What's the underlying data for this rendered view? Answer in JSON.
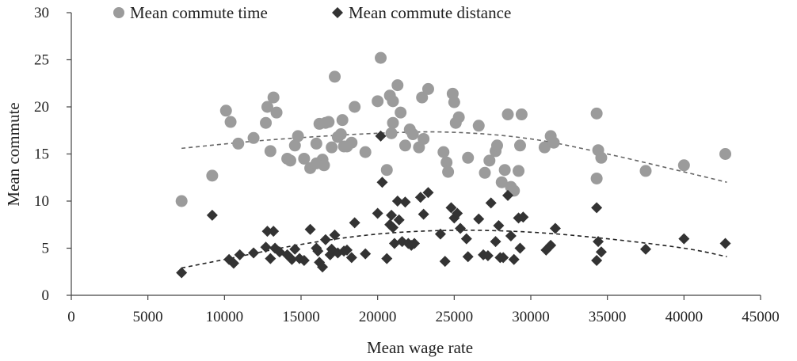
{
  "chart_data": {
    "type": "scatter",
    "title": "",
    "xlabel": "Mean wage rate",
    "ylabel": "Mean commute",
    "xlim": [
      0,
      45000
    ],
    "ylim": [
      0,
      30
    ],
    "x_ticks": [
      "0",
      "5000",
      "10000",
      "15000",
      "20000",
      "25000",
      "30000",
      "35000",
      "40000",
      "45000"
    ],
    "y_ticks": [
      "0",
      "5",
      "10",
      "15",
      "20",
      "25",
      "30"
    ],
    "legend_position": "top",
    "series": [
      {
        "name": "Mean commute time",
        "marker": "circle",
        "color": "#9b9b9b",
        "trendline": {
          "type": "polynomial",
          "color": "#666666",
          "points": [
            [
              7200,
              15.6
            ],
            [
              13000,
              16.5
            ],
            [
              20000,
              17.2
            ],
            [
              25000,
              17.3
            ],
            [
              30000,
              16.6
            ],
            [
              35000,
              15.0
            ],
            [
              40000,
              13.1
            ],
            [
              42800,
              12.0
            ]
          ]
        },
        "points": [
          [
            7200,
            10.0
          ],
          [
            9200,
            12.7
          ],
          [
            10100,
            19.6
          ],
          [
            10400,
            18.4
          ],
          [
            10900,
            16.1
          ],
          [
            11900,
            16.7
          ],
          [
            12800,
            20.0
          ],
          [
            12700,
            18.3
          ],
          [
            13000,
            15.3
          ],
          [
            13200,
            21.0
          ],
          [
            13400,
            19.4
          ],
          [
            14100,
            14.5
          ],
          [
            14600,
            15.9
          ],
          [
            14800,
            16.9
          ],
          [
            14300,
            14.3
          ],
          [
            15200,
            14.5
          ],
          [
            15600,
            13.5
          ],
          [
            16000,
            14.0
          ],
          [
            16000,
            16.1
          ],
          [
            16200,
            18.2
          ],
          [
            16400,
            14.4
          ],
          [
            16500,
            13.8
          ],
          [
            16600,
            18.3
          ],
          [
            16800,
            18.4
          ],
          [
            17000,
            15.7
          ],
          [
            17200,
            23.2
          ],
          [
            17400,
            16.8
          ],
          [
            17600,
            17.1
          ],
          [
            17800,
            15.8
          ],
          [
            17700,
            18.6
          ],
          [
            18300,
            16.2
          ],
          [
            18500,
            20.0
          ],
          [
            18000,
            15.8
          ],
          [
            19200,
            15.2
          ],
          [
            20000,
            20.6
          ],
          [
            20200,
            25.2
          ],
          [
            20600,
            13.3
          ],
          [
            20800,
            21.2
          ],
          [
            20900,
            17.2
          ],
          [
            21000,
            20.6
          ],
          [
            21000,
            18.3
          ],
          [
            21300,
            22.3
          ],
          [
            21500,
            19.4
          ],
          [
            21800,
            15.9
          ],
          [
            22100,
            17.6
          ],
          [
            22300,
            17.1
          ],
          [
            22700,
            15.7
          ],
          [
            22900,
            21.0
          ],
          [
            23000,
            16.6
          ],
          [
            23300,
            21.9
          ],
          [
            24300,
            15.2
          ],
          [
            24500,
            14.1
          ],
          [
            24600,
            13.1
          ],
          [
            24900,
            21.4
          ],
          [
            25000,
            20.5
          ],
          [
            25100,
            18.3
          ],
          [
            25300,
            18.9
          ],
          [
            25900,
            14.6
          ],
          [
            26600,
            18.0
          ],
          [
            27000,
            13.0
          ],
          [
            27300,
            14.3
          ],
          [
            27700,
            15.3
          ],
          [
            27800,
            15.9
          ],
          [
            28100,
            12.0
          ],
          [
            28300,
            13.3
          ],
          [
            28500,
            19.2
          ],
          [
            28700,
            11.5
          ],
          [
            28900,
            11.1
          ],
          [
            29200,
            13.2
          ],
          [
            29300,
            15.9
          ],
          [
            29400,
            19.2
          ],
          [
            30900,
            15.7
          ],
          [
            31300,
            16.9
          ],
          [
            31500,
            16.2
          ],
          [
            34300,
            19.3
          ],
          [
            34300,
            12.4
          ],
          [
            34400,
            15.4
          ],
          [
            34600,
            14.6
          ],
          [
            37500,
            13.2
          ],
          [
            40000,
            13.8
          ],
          [
            42700,
            15.0
          ]
        ]
      },
      {
        "name": "Mean commute distance",
        "marker": "diamond",
        "color": "#333333",
        "trendline": {
          "type": "polynomial",
          "color": "#222222",
          "points": [
            [
              7200,
              2.9
            ],
            [
              10000,
              3.8
            ],
            [
              15000,
              5.4
            ],
            [
              20000,
              6.5
            ],
            [
              25000,
              6.9
            ],
            [
              30000,
              6.7
            ],
            [
              35000,
              6.0
            ],
            [
              40000,
              5.0
            ],
            [
              42800,
              4.1
            ]
          ]
        },
        "points": [
          [
            7200,
            2.4
          ],
          [
            9200,
            8.5
          ],
          [
            10300,
            3.8
          ],
          [
            10600,
            3.4
          ],
          [
            11000,
            4.3
          ],
          [
            11900,
            4.5
          ],
          [
            12700,
            5.1
          ],
          [
            12800,
            6.8
          ],
          [
            13000,
            3.9
          ],
          [
            13200,
            6.8
          ],
          [
            13300,
            5.0
          ],
          [
            13600,
            4.6
          ],
          [
            14100,
            4.3
          ],
          [
            14400,
            3.8
          ],
          [
            14600,
            4.9
          ],
          [
            14900,
            3.9
          ],
          [
            15200,
            3.7
          ],
          [
            15600,
            7.0
          ],
          [
            16000,
            5.0
          ],
          [
            16100,
            4.7
          ],
          [
            16200,
            3.5
          ],
          [
            16400,
            3.0
          ],
          [
            16600,
            5.9
          ],
          [
            16900,
            4.3
          ],
          [
            17000,
            4.9
          ],
          [
            17200,
            6.4
          ],
          [
            17400,
            4.5
          ],
          [
            17800,
            4.7
          ],
          [
            18000,
            4.8
          ],
          [
            18300,
            4.0
          ],
          [
            18500,
            7.7
          ],
          [
            19200,
            4.4
          ],
          [
            20000,
            8.7
          ],
          [
            20200,
            16.9
          ],
          [
            20300,
            12.0
          ],
          [
            20600,
            3.9
          ],
          [
            20800,
            7.5
          ],
          [
            20900,
            8.5
          ],
          [
            21000,
            7.2
          ],
          [
            21100,
            5.5
          ],
          [
            21300,
            10.0
          ],
          [
            21400,
            8.0
          ],
          [
            21600,
            5.7
          ],
          [
            21800,
            9.9
          ],
          [
            22000,
            5.5
          ],
          [
            22200,
            5.3
          ],
          [
            22400,
            5.5
          ],
          [
            22800,
            10.4
          ],
          [
            23000,
            8.6
          ],
          [
            23300,
            10.9
          ],
          [
            24100,
            6.5
          ],
          [
            24400,
            3.6
          ],
          [
            24800,
            9.3
          ],
          [
            25000,
            8.2
          ],
          [
            25200,
            8.7
          ],
          [
            25400,
            7.1
          ],
          [
            25800,
            6.0
          ],
          [
            25900,
            4.1
          ],
          [
            26600,
            8.1
          ],
          [
            26900,
            4.3
          ],
          [
            27200,
            4.2
          ],
          [
            27400,
            9.8
          ],
          [
            27700,
            5.7
          ],
          [
            27900,
            7.4
          ],
          [
            28000,
            4.0
          ],
          [
            28200,
            4.0
          ],
          [
            28500,
            10.6
          ],
          [
            28700,
            6.3
          ],
          [
            28900,
            3.8
          ],
          [
            29200,
            8.2
          ],
          [
            29300,
            5.0
          ],
          [
            29500,
            8.3
          ],
          [
            31000,
            4.8
          ],
          [
            31300,
            5.3
          ],
          [
            31600,
            7.1
          ],
          [
            34300,
            9.3
          ],
          [
            34400,
            5.7
          ],
          [
            34300,
            3.7
          ],
          [
            34600,
            4.6
          ],
          [
            37500,
            4.9
          ],
          [
            40000,
            6.0
          ],
          [
            42700,
            5.5
          ]
        ]
      }
    ]
  }
}
